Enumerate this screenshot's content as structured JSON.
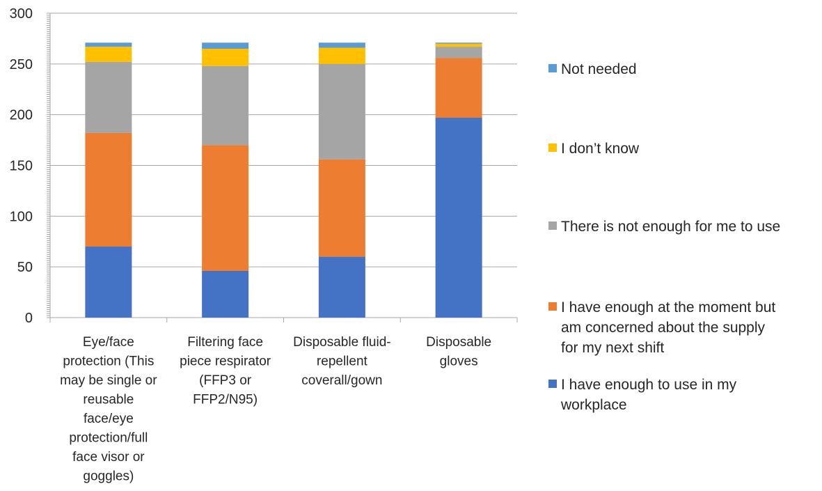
{
  "chart_data": {
    "type": "bar",
    "stacked": true,
    "categories": [
      "Eye/face protection (This may be single or reusable face/eye protection/full face visor or goggles)",
      "Filtering face piece respirator (FFP3 or FFP2/N95)",
      "Disposable fluid-repellent coverall/gown",
      "Disposable gloves"
    ],
    "category_lines": [
      [
        "Eye/face",
        "protection (This",
        "may be single or",
        "reusable",
        "face/eye",
        "protection/full",
        "face visor or",
        "goggles)"
      ],
      [
        "Filtering face",
        "piece respirator",
        "(FFP3 or",
        "FFP2/N95)"
      ],
      [
        "Disposable fluid-",
        "repellent",
        "coverall/gown"
      ],
      [
        "Disposable",
        "gloves"
      ]
    ],
    "series": [
      {
        "name": "I have enough to use in my workplace",
        "legend_lines": [
          "I have enough to use in my",
          "workplace"
        ],
        "color": "#4472C4",
        "values": [
          70,
          46,
          60,
          197
        ]
      },
      {
        "name": "I have enough at the moment but am concerned about the supply for my next shift",
        "legend_lines": [
          "I have enough at the moment but",
          "am concerned about the supply",
          "for my next shift"
        ],
        "color": "#ED7D31",
        "values": [
          112,
          124,
          96,
          59
        ]
      },
      {
        "name": "There is not enough for me to use",
        "legend_lines": [
          "There is not enough for me to use"
        ],
        "color": "#A5A5A5",
        "values": [
          70,
          78,
          94,
          11
        ]
      },
      {
        "name": "I don’t know",
        "legend_lines": [
          "I don’t know"
        ],
        "color": "#FFC000",
        "values": [
          15,
          17,
          16,
          3
        ]
      },
      {
        "name": "Not needed",
        "legend_lines": [
          "Not needed"
        ],
        "color": "#5B9BD5",
        "values": [
          4,
          6,
          5,
          1
        ]
      }
    ],
    "ylim": [
      0,
      300
    ],
    "yticks": [
      "0",
      "50",
      "100",
      "150",
      "200",
      "250",
      "300"
    ],
    "grid": true,
    "legend_position": "right",
    "title": "",
    "xlabel": "",
    "ylabel": ""
  }
}
